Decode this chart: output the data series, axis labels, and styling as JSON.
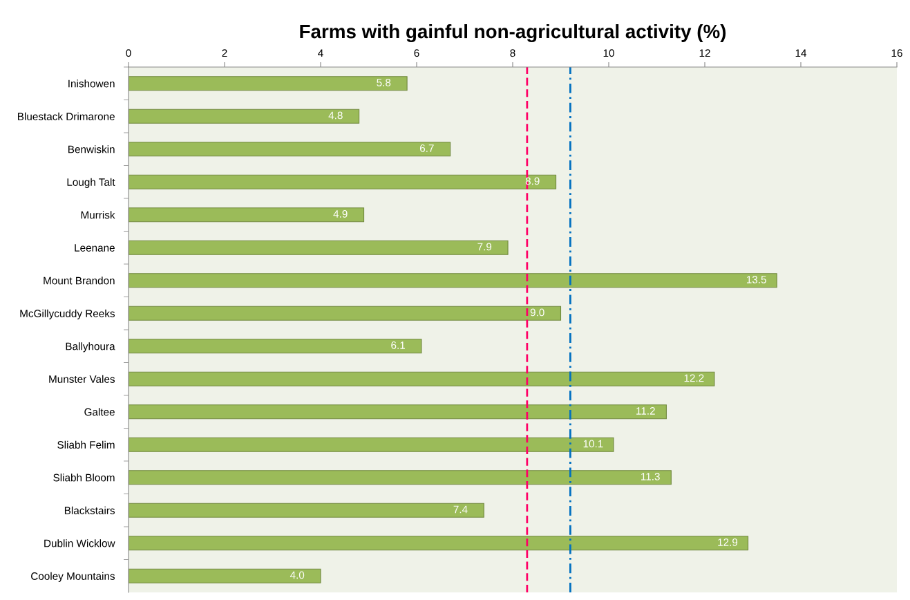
{
  "chart_data": {
    "type": "bar",
    "orientation": "horizontal",
    "title": "Farms with gainful non-agricultural activity (%)",
    "categories": [
      "Inishowen",
      "Bluestack Drimarone",
      "Benwiskin",
      "Lough Talt",
      "Murrisk",
      "Leenane",
      "Mount Brandon",
      "McGillycuddy Reeks",
      "Ballyhoura",
      "Munster Vales",
      "Galtee",
      "Sliabh Felim",
      "Sliabh Bloom",
      "Blackstairs",
      "Dublin Wicklow",
      "Cooley Mountains"
    ],
    "values": [
      5.8,
      4.8,
      6.7,
      8.9,
      4.9,
      7.9,
      13.5,
      9.0,
      6.1,
      12.2,
      11.2,
      10.1,
      11.3,
      7.4,
      12.9,
      4.0
    ],
    "value_labels": [
      "5.8",
      "4.8",
      "6.7",
      "8.9",
      "4.9",
      "7.9",
      "13.5",
      "9.0",
      "6.1",
      "12.2",
      "11.2",
      "10.1",
      "11.3",
      "7.4",
      "12.9",
      "4.0"
    ],
    "color": "#9bbb59",
    "xlim": [
      0,
      16
    ],
    "xticks": [
      0,
      2,
      4,
      6,
      8,
      10,
      12,
      14,
      16
    ],
    "ref_lines": [
      {
        "axis": "x",
        "value": 8.3,
        "color": "#ff0066",
        "line_style": "dashed"
      },
      {
        "axis": "x",
        "value": 9.2,
        "color": "#0070c0",
        "line_style": "dashdot"
      }
    ],
    "grid": false
  }
}
